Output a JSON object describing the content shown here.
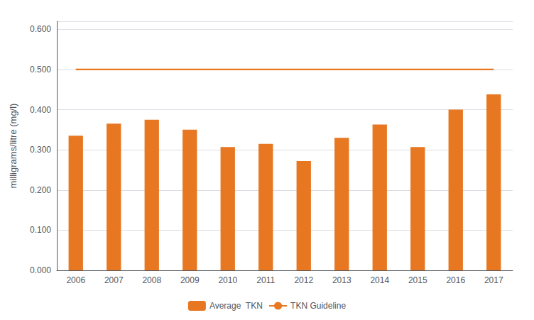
{
  "chart_data": {
    "type": "bar",
    "categories": [
      "2006",
      "2007",
      "2008",
      "2009",
      "2010",
      "2011",
      "2012",
      "2013",
      "2014",
      "2015",
      "2016",
      "2017"
    ],
    "series": [
      {
        "name": "Average  TKN",
        "type": "bar",
        "color": "#E87722",
        "values": [
          0.335,
          0.365,
          0.375,
          0.35,
          0.307,
          0.315,
          0.272,
          0.33,
          0.363,
          0.307,
          0.4,
          0.438
        ]
      },
      {
        "name": "TKN Guideline",
        "type": "line",
        "color": "#E87722",
        "values": [
          0.5,
          0.5,
          0.5,
          0.5,
          0.5,
          0.5,
          0.5,
          0.5,
          0.5,
          0.5,
          0.5,
          0.5
        ]
      }
    ],
    "ylabel": "milligrams/litre (mg/l)",
    "ylim": [
      0.0,
      0.62
    ],
    "yticks": [
      {
        "value": 0.0,
        "label": "0.000"
      },
      {
        "value": 0.1,
        "label": "0.100"
      },
      {
        "value": 0.2,
        "label": "0.200"
      },
      {
        "value": 0.3,
        "label": "0.300"
      },
      {
        "value": 0.4,
        "label": "0.400"
      },
      {
        "value": 0.5,
        "label": "0.500"
      },
      {
        "value": 0.6,
        "label": "0.600"
      }
    ],
    "grid": true,
    "legend": "bottom"
  }
}
